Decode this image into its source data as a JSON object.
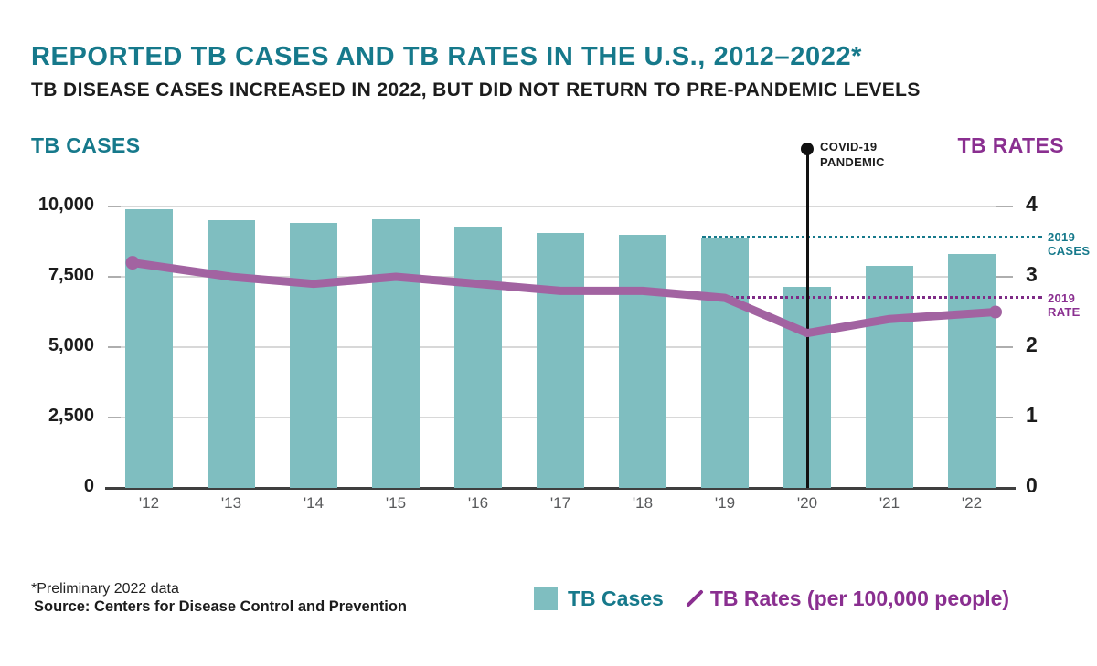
{
  "title": "REPORTED TB CASES AND TB RATES IN THE U.S., 2012–2022*",
  "subtitle": "TB DISEASE CASES INCREASED IN 2022, BUT DID NOT RETURN TO PRE-PANDEMIC LEVELS",
  "left_axis_title": "TB CASES",
  "right_axis_title": "TB RATES",
  "annotation": {
    "line1": "COVID-19",
    "line2": "PANDEMIC",
    "at_category": "'20"
  },
  "ref_lines": {
    "cases_2019": {
      "label_line1": "2019",
      "label_line2": "CASES",
      "value": 8900
    },
    "rate_2019": {
      "label_line1": "2019",
      "label_line2": "RATE",
      "value": 2.7
    }
  },
  "legend": {
    "cases_label": "TB Cases",
    "rates_label": "TB Rates (per 100,000 people)"
  },
  "footnote": "*Preliminary 2022 data",
  "source": "Source: Centers for Disease Control and Prevention",
  "colors": {
    "bar_teal": "#7fbec0",
    "teal_text": "#16798b",
    "rate_line": "#a263a1",
    "purple_text": "#8a2f90",
    "ref_cases_dotted": "#16798b",
    "ref_rate_dotted": "#7e2b86",
    "gridline": "#d8d8d8",
    "axis_line": "#3f3f3f",
    "x_label_gray": "#58595b",
    "annotation_black": "#111111"
  },
  "chart_data": {
    "type": "bar+line",
    "title": "Reported TB Cases and TB Rates in the U.S., 2012–2022 (preliminary 2022 data)",
    "categories": [
      "'12",
      "'13",
      "'14",
      "'15",
      "'16",
      "'17",
      "'18",
      "'19",
      "'20",
      "'21",
      "'22"
    ],
    "series": [
      {
        "name": "TB Cases",
        "type": "bar",
        "axis": "left",
        "values": [
          9900,
          9500,
          9400,
          9540,
          9250,
          9060,
          8990,
          8900,
          7150,
          7900,
          8300
        ]
      },
      {
        "name": "TB Rates (per 100,000 people)",
        "type": "line",
        "axis": "right",
        "values": [
          3.2,
          3.0,
          2.9,
          3.0,
          2.9,
          2.8,
          2.8,
          2.7,
          2.2,
          2.4,
          2.5
        ]
      }
    ],
    "left_axis": {
      "label": "TB CASES",
      "ticks_top_to_bottom": [
        "10,000",
        "7,500",
        "5,000",
        "2,500",
        "0"
      ],
      "range": [
        0,
        10000
      ]
    },
    "right_axis": {
      "label": "TB RATES",
      "ticks_top_to_bottom": [
        "4",
        "3",
        "2",
        "1",
        "0"
      ],
      "range": [
        0,
        4
      ]
    },
    "reference_lines": [
      {
        "name": "2019 CASES",
        "axis": "left",
        "value": 8900,
        "style": "dotted"
      },
      {
        "name": "2019 RATE",
        "axis": "right",
        "value": 2.7,
        "style": "dotted"
      }
    ],
    "annotations": [
      {
        "text": "COVID-19 PANDEMIC",
        "category": "'20",
        "type": "vertical-line-with-dot"
      }
    ],
    "grid": "horizontal",
    "legend_position": "bottom"
  }
}
